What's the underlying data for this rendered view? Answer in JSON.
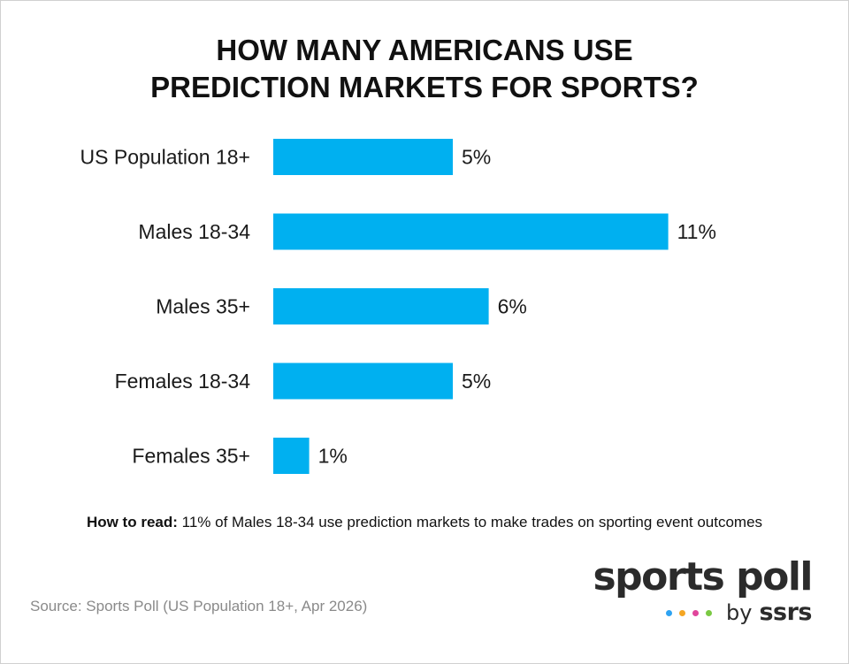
{
  "chart_data": {
    "type": "bar",
    "orientation": "horizontal",
    "title_lines": [
      "HOW MANY AMERICANS USE",
      "PREDICTION MARKETS FOR SPORTS?"
    ],
    "categories": [
      "US Population 18+",
      "Males 18-34",
      "Males 35+",
      "Females 18-34",
      "Females 35+"
    ],
    "values": [
      5,
      11,
      6,
      5,
      1
    ],
    "value_labels": [
      "5%",
      "11%",
      "6%",
      "5%",
      "1%"
    ],
    "unit": "%",
    "bar_color": "#00b0f0",
    "grid": false,
    "legend": "none"
  },
  "note": {
    "prefix": "How to read:",
    "text": " 11% of Males 18-34 use prediction markets to make trades on sporting event outcomes"
  },
  "source": "Source: Sports Poll (US Population 18+, Apr 2026)",
  "brand": {
    "main": "sports poll",
    "by": "by",
    "org": "ssrs",
    "dot_colors": [
      "#2ea3f2",
      "#f5a623",
      "#e0459b",
      "#7ac943"
    ]
  }
}
